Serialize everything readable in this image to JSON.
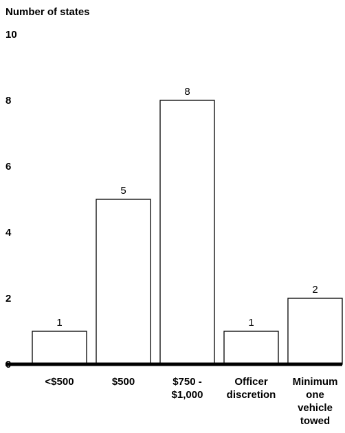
{
  "chart_data": {
    "type": "bar",
    "ylabel": "Number of states",
    "xlabel": "",
    "title": "",
    "categories": [
      "<$500",
      "$500",
      "$750 - $1,000",
      "Officer discretion",
      "Minimum one vehicle towed"
    ],
    "category_lines": [
      [
        "<$500"
      ],
      [
        "$500"
      ],
      [
        "$750 -",
        "$1,000"
      ],
      [
        "Officer",
        "discretion"
      ],
      [
        "Minimum",
        "one",
        "vehicle",
        "towed"
      ]
    ],
    "values": [
      1,
      5,
      8,
      1,
      2
    ],
    "ylim": [
      0,
      10
    ],
    "yticks": [
      0,
      2,
      4,
      6,
      8,
      10
    ],
    "grid": false,
    "data_labels": true,
    "colors": {
      "bar_fill": "#ffffff",
      "bar_stroke": "#000000",
      "baseline": "#000000"
    }
  }
}
